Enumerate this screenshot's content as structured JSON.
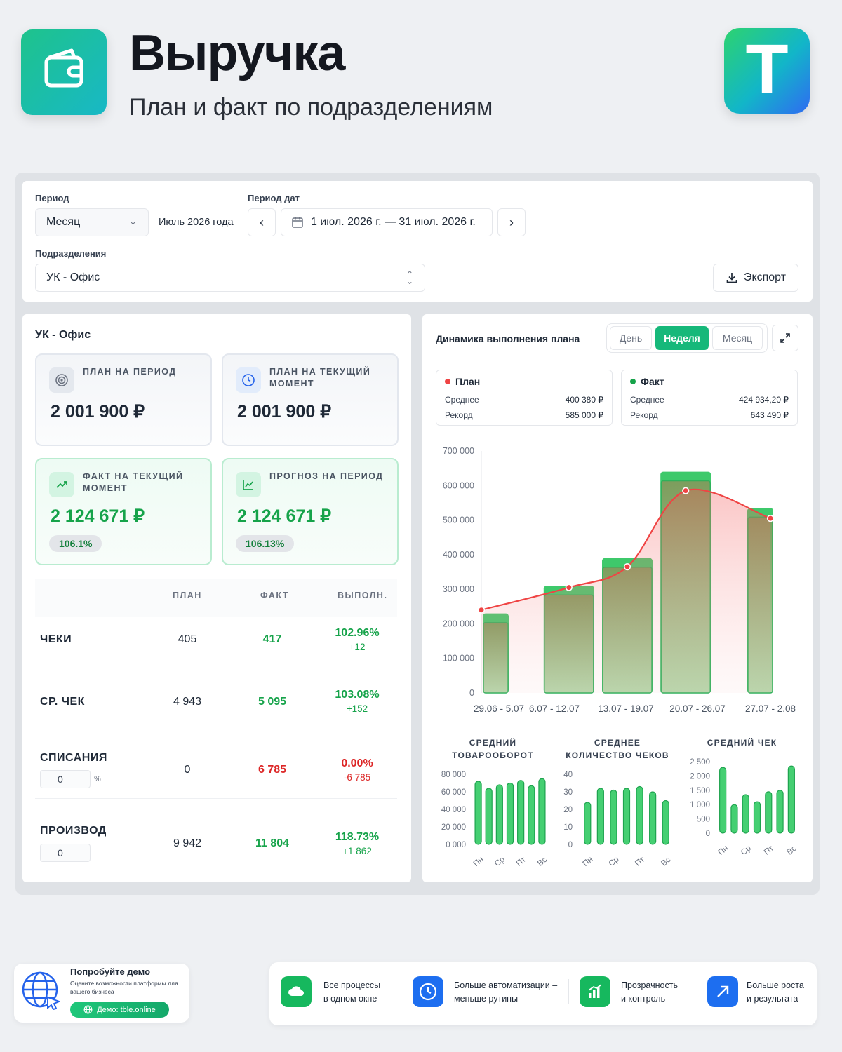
{
  "header": {
    "title": "Выручка",
    "subtitle": "План и факт по подразделениям",
    "app_icon": "wallet-icon",
    "brand_logo_letter": "T"
  },
  "filters": {
    "period_label": "Период",
    "period_value": "Месяц",
    "period_text": "Июль 2026 года",
    "date_period_label": "Период дат",
    "date_range": "1 июл. 2026 г. — 31 июл. 2026 г.",
    "dept_label": "Подразделения",
    "dept_value": "УК - Офис",
    "export_label": "Экспорт"
  },
  "left": {
    "title": "УК - Офис",
    "kpis": [
      {
        "label": "ПЛАН НА ПЕРИОД",
        "value": "2 001 900 ₽",
        "icon": "target-icon"
      },
      {
        "label": "ПЛАН НА ТЕКУЩИЙ МОМЕНТ",
        "value": "2 001 900 ₽",
        "icon": "clock-icon"
      },
      {
        "label": "ФАКТ НА ТЕКУЩИЙ МОМЕНТ",
        "value": "2 124 671 ₽",
        "icon": "trend-up-icon",
        "badge": "106.1%"
      },
      {
        "label": "ПРОГНОЗ НА ПЕРИОД",
        "value": "2 124 671 ₽",
        "icon": "line-chart-icon",
        "badge": "106.13%"
      }
    ],
    "table": {
      "headers": [
        "ПЛАН",
        "ФАКТ",
        "ВЫПОЛН."
      ],
      "rows": [
        {
          "label": "ЧЕКИ",
          "plan": "405",
          "fact": "417",
          "pct": "102.96%",
          "diff": "+12"
        },
        {
          "label": "СР. ЧЕК",
          "plan": "4 943",
          "fact": "5 095",
          "pct": "103.08%",
          "diff": "+152"
        },
        {
          "label": "СПИСАНИЯ",
          "plan": "0",
          "fact": "6 785",
          "pct": "0.00%",
          "diff": "-6 785",
          "input": "0",
          "unit": "%"
        },
        {
          "label": "ПРОИЗВОД",
          "plan": "9 942",
          "fact": "11 804",
          "pct": "118.73%",
          "diff": "+1 862",
          "input": "0"
        }
      ]
    }
  },
  "right": {
    "title": "Динамика выполнения плана",
    "tabs": [
      "День",
      "Неделя",
      "Месяц"
    ],
    "active_tab": "Неделя",
    "plan_stats": {
      "title": "План",
      "avg_label": "Среднее",
      "avg": "400 380 ₽",
      "rec_label": "Рекорд",
      "rec": "585 000 ₽"
    },
    "fact_stats": {
      "title": "Факт",
      "avg_label": "Среднее",
      "avg": "424 934,20 ₽",
      "rec_label": "Рекорд",
      "rec": "643 490 ₽"
    },
    "mini_titles": [
      "СРЕДНИЙ ТОВАРООБОРОТ",
      "СРЕДНЕЕ КОЛИЧЕСТВО ЧЕКОВ",
      "СРЕДНИЙ ЧЕК"
    ]
  },
  "chart_data": [
    {
      "type": "bar",
      "categories": [
        "29.06 - 5.07",
        "6.07 - 12.07",
        "13.07 - 19.07",
        "20.07 - 26.07",
        "27.07 - 2.08"
      ],
      "series": [
        {
          "name": "Факт",
          "values": [
            230000,
            310000,
            390000,
            640000,
            535000
          ]
        },
        {
          "name": "План",
          "type": "line",
          "values": [
            240000,
            305000,
            365000,
            585000,
            505000
          ]
        }
      ],
      "ylim": [
        0,
        700000
      ],
      "yticks": [
        "0",
        "100 000",
        "200 000",
        "300 000",
        "400 000",
        "500 000",
        "600 000",
        "700 000"
      ]
    },
    {
      "type": "bar",
      "title": "СРЕДНИЙ ТОВАРООБОРОТ",
      "categories": [
        "Пн",
        "Вт",
        "Ср",
        "Чт",
        "Пт",
        "Сб",
        "Вс"
      ],
      "values": [
        72000,
        64000,
        68000,
        70000,
        73000,
        67000,
        75000
      ],
      "ylim": [
        0,
        80000
      ],
      "yticks": [
        "0 000",
        "20 000",
        "40 000",
        "60 000",
        "80 000"
      ],
      "xticks": [
        "Пн",
        "Ср",
        "Пт",
        "Вс"
      ]
    },
    {
      "type": "bar",
      "title": "СРЕДНЕЕ КОЛИЧЕСТВО ЧЕКОВ",
      "categories": [
        "Пн",
        "Вт",
        "Ср",
        "Чт",
        "Пт",
        "Сб",
        "Вс"
      ],
      "values": [
        24,
        32,
        31,
        32,
        33,
        30,
        25
      ],
      "ylim": [
        0,
        40
      ],
      "yticks": [
        "0",
        "10",
        "20",
        "30",
        "40"
      ],
      "xticks": [
        "Пн",
        "Ср",
        "Пт",
        "Вс"
      ]
    },
    {
      "type": "bar",
      "title": "СРЕДНИЙ ЧЕК",
      "categories": [
        "Пн",
        "Вт",
        "Ср",
        "Чт",
        "Пт",
        "Сб",
        "Вс"
      ],
      "values": [
        2300,
        1000,
        1350,
        1100,
        1450,
        1500,
        2350
      ],
      "ylim": [
        0,
        2500
      ],
      "yticks": [
        "0",
        "500",
        "1 000",
        "1 500",
        "2 000",
        "2 500"
      ],
      "xticks": [
        "Пн",
        "Ср",
        "Пт",
        "Вс"
      ]
    }
  ],
  "footer": {
    "demo_title": "Попробуйте демо",
    "demo_desc": "Оцените возможности платформы для вашего бизнеса",
    "demo_button": "Демо: tble.online",
    "features": [
      {
        "line1": "Все процессы",
        "line2": "в одном окне",
        "icon": "cloud-icon"
      },
      {
        "line1": "Больше автоматизации –",
        "line2": "меньше рутины",
        "icon": "clock-icon"
      },
      {
        "line1": "Прозрачность",
        "line2": "и контроль",
        "icon": "bar-chart-icon"
      },
      {
        "line1": "Больше роста",
        "line2": "и результата",
        "icon": "arrow-up-right-icon"
      }
    ]
  }
}
